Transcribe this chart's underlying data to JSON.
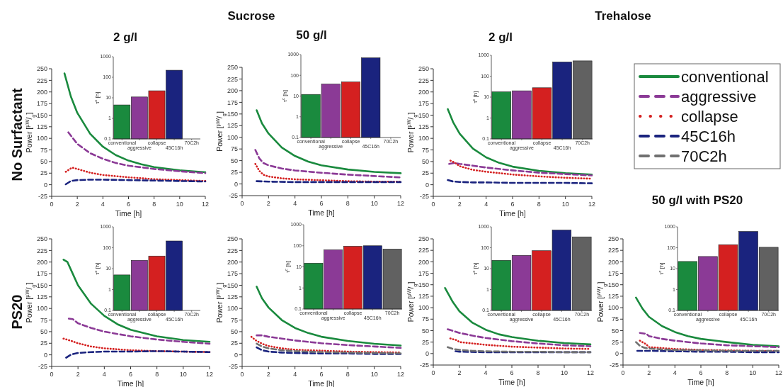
{
  "chart_data": [
    {
      "type": "line",
      "title": "2 g/l",
      "annotations": [
        "Sucrose",
        "No Surfactant"
      ],
      "xlabel": "Time [h]",
      "ylabel": "Power [$^{µW}$/$_{g}$]",
      "xlim": [
        0,
        12
      ],
      "xticks": [
        0,
        2,
        4,
        6,
        8,
        10,
        12
      ],
      "ylim": [
        -25,
        250
      ],
      "yticks": [
        -25,
        0,
        25,
        50,
        75,
        100,
        125,
        150,
        175,
        200,
        225,
        250
      ],
      "series": [
        {
          "color": "#1a8a3e",
          "line_style": "solid",
          "x": [
            1,
            1.5,
            2,
            3,
            4,
            5,
            6,
            7,
            8,
            10,
            12
          ],
          "values": [
            240,
            190,
            155,
            110,
            82,
            64,
            52,
            44,
            38,
            31,
            27
          ]
        },
        {
          "color": "#8b3a96",
          "line_style": "dashed",
          "x": [
            1.3,
            2,
            3,
            4,
            5,
            6,
            8,
            10,
            12
          ],
          "values": [
            113,
            88,
            68,
            56,
            47,
            41,
            34,
            29,
            25
          ]
        },
        {
          "color": "#d42020",
          "line_style": "dotted",
          "x": [
            1.1,
            1.6,
            2,
            3,
            4,
            6,
            8,
            10,
            12
          ],
          "values": [
            28,
            37,
            34,
            26,
            21,
            16,
            12,
            10,
            8
          ]
        },
        {
          "color": "#1a237e",
          "line_style": "dashed",
          "x": [
            1.1,
            1.5,
            2,
            3,
            4,
            6,
            8,
            10,
            12
          ],
          "values": [
            1,
            8,
            10,
            11,
            11,
            10,
            9,
            8,
            7
          ]
        }
      ]
    },
    {
      "type": "bar",
      "log": true,
      "ylabel": "τ$^{c}$ [h]",
      "ylim": [
        0.1,
        1000
      ],
      "yticks": [
        0.1,
        1,
        10,
        100,
        1000
      ],
      "categories": [
        "conventional",
        "aggressive",
        "collapse",
        "45C16h",
        "70C2h"
      ],
      "values": [
        4.5,
        11,
        22,
        220,
        null
      ],
      "colors": [
        "#1a8a3e",
        "#8b3a96",
        "#d42020",
        "#1a237e",
        null
      ]
    },
    {
      "type": "line",
      "title": "50 g/l",
      "xlabel": "Time [h]",
      "ylabel": "Power [$^{µW}$/$_{g}$]",
      "xlim": [
        0,
        12
      ],
      "xticks": [
        0,
        2,
        4,
        6,
        8,
        10,
        12
      ],
      "ylim": [
        -25,
        250
      ],
      "yticks": [
        -25,
        0,
        25,
        50,
        75,
        100,
        125,
        150,
        175,
        200,
        225,
        250
      ],
      "series": [
        {
          "color": "#1a8a3e",
          "line_style": "solid",
          "x": [
            1.1,
            1.5,
            2,
            3,
            4,
            5,
            6,
            8,
            10,
            12
          ],
          "values": [
            158,
            130,
            108,
            78,
            60,
            48,
            40,
            31,
            26,
            23
          ]
        },
        {
          "color": "#8b3a96",
          "line_style": "dashed",
          "x": [
            1,
            1.3,
            1.6,
            2,
            3,
            4,
            6,
            8,
            10,
            12
          ],
          "values": [
            73,
            55,
            45,
            40,
            33,
            29,
            24,
            20,
            17,
            14
          ]
        },
        {
          "color": "#d42020",
          "line_style": "dotted",
          "x": [
            1,
            1.3,
            1.6,
            2,
            3,
            4,
            6,
            8,
            10,
            12
          ],
          "values": [
            43,
            28,
            20,
            16,
            12,
            10,
            8,
            6,
            5,
            5
          ]
        },
        {
          "color": "#1a237e",
          "line_style": "dashed",
          "x": [
            1.1,
            2,
            4,
            6,
            8,
            10,
            12
          ],
          "values": [
            6,
            5,
            4,
            4,
            4,
            4,
            4
          ]
        }
      ]
    },
    {
      "type": "bar",
      "log": true,
      "ylabel": "τ$^{c}$ [h]",
      "ylim": [
        0.1,
        1000
      ],
      "yticks": [
        0.1,
        1,
        10,
        100,
        1000
      ],
      "categories": [
        "conventional",
        "aggressive",
        "collapse",
        "45C16h",
        "70C2h"
      ],
      "values": [
        12,
        38,
        48,
        700,
        null
      ],
      "colors": [
        "#1a8a3e",
        "#8b3a96",
        "#d42020",
        "#1a237e",
        null
      ]
    },
    {
      "type": "line",
      "title": "2 g/l",
      "annotations": [
        "Trehalose"
      ],
      "xlabel": "Time [h]",
      "ylabel": "Power [$^{µW}$/$_{g}$]",
      "xlim": [
        0,
        12
      ],
      "xticks": [
        0,
        2,
        4,
        6,
        8,
        10,
        12
      ],
      "ylim": [
        -25,
        250
      ],
      "yticks": [
        -25,
        0,
        25,
        50,
        75,
        100,
        125,
        150,
        175,
        200,
        225,
        250
      ],
      "series": [
        {
          "color": "#1a8a3e",
          "line_style": "solid",
          "x": [
            1.1,
            1.5,
            2,
            3,
            4,
            5,
            6,
            8,
            10,
            12
          ],
          "values": [
            163,
            135,
            110,
            78,
            59,
            47,
            39,
            30,
            25,
            22
          ]
        },
        {
          "color": "#8b3a96",
          "line_style": "dashed",
          "x": [
            1.2,
            1.6,
            2,
            3,
            4,
            6,
            8,
            10,
            12
          ],
          "values": [
            45,
            47,
            45,
            41,
            37,
            31,
            26,
            23,
            20
          ]
        },
        {
          "color": "#d42020",
          "line_style": "dotted",
          "x": [
            1.3,
            1.6,
            2,
            3,
            4,
            6,
            8,
            10,
            12
          ],
          "values": [
            52,
            48,
            40,
            32,
            28,
            22,
            18,
            15,
            13
          ]
        },
        {
          "color": "#1a237e",
          "line_style": "dashed",
          "x": [
            1.1,
            1.5,
            2,
            3,
            4,
            6,
            8,
            10,
            12
          ],
          "values": [
            10,
            7,
            6,
            5,
            5,
            4,
            4,
            4,
            3
          ]
        }
      ]
    },
    {
      "type": "bar",
      "log": true,
      "ylabel": "τ$^{c}$ [h]",
      "ylim": [
        0.1,
        1000
      ],
      "yticks": [
        0.1,
        1,
        10,
        100,
        1000
      ],
      "categories": [
        "conventional",
        "aggressive",
        "collapse",
        "45C16h",
        "70C2h"
      ],
      "values": [
        18,
        20,
        28,
        480,
        540
      ],
      "colors": [
        "#1a8a3e",
        "#8b3a96",
        "#d42020",
        "#1a237e",
        "#616161"
      ]
    },
    {
      "type": "line",
      "annotations": [
        "PS20"
      ],
      "xlabel": "Time [h]",
      "ylabel": "Power [$^{µW}$/$_{g}$]",
      "xlim": [
        0,
        12
      ],
      "xticks": [
        0,
        2,
        4,
        6,
        8,
        10,
        12
      ],
      "ylim": [
        -25,
        250
      ],
      "yticks": [
        -25,
        0,
        25,
        50,
        75,
        100,
        125,
        150,
        175,
        200,
        225,
        250
      ],
      "series": [
        {
          "color": "#1a8a3e",
          "line_style": "solid",
          "x": [
            0.9,
            1.2,
            1.6,
            2,
            3,
            4,
            5,
            6,
            8,
            10,
            12
          ],
          "values": [
            205,
            200,
            175,
            150,
            110,
            84,
            66,
            54,
            40,
            32,
            28
          ]
        },
        {
          "color": "#8b3a96",
          "line_style": "dashed",
          "x": [
            1.3,
            1.6,
            2,
            3,
            4,
            6,
            8,
            10,
            12
          ],
          "values": [
            78,
            77,
            68,
            58,
            50,
            40,
            33,
            28,
            24
          ]
        },
        {
          "color": "#d42020",
          "line_style": "dotted",
          "x": [
            0.9,
            1.5,
            2,
            3,
            4,
            6,
            8,
            10,
            12
          ],
          "values": [
            35,
            30,
            25,
            18,
            14,
            10,
            8,
            7,
            6
          ]
        },
        {
          "color": "#1a237e",
          "line_style": "dashed",
          "x": [
            1.1,
            1.5,
            2,
            3,
            4,
            6,
            8,
            10,
            12
          ],
          "values": [
            -6,
            1,
            4,
            6,
            7,
            7,
            8,
            7,
            6
          ]
        }
      ]
    },
    {
      "type": "bar",
      "log": true,
      "ylabel": "τ$^{c}$ [h]",
      "ylim": [
        0.1,
        1000
      ],
      "yticks": [
        0.1,
        1,
        10,
        100,
        1000
      ],
      "categories": [
        "conventional",
        "aggressive",
        "collapse",
        "45C16h",
        "70C2h"
      ],
      "values": [
        5,
        25,
        40,
        210,
        null
      ],
      "colors": [
        "#1a8a3e",
        "#8b3a96",
        "#d42020",
        "#1a237e",
        null
      ]
    },
    {
      "type": "line",
      "xlabel": "Time [h]",
      "ylabel": "Power [$^{µW}$/$_{g}$]",
      "xlim": [
        0,
        12
      ],
      "xticks": [
        0,
        2,
        4,
        6,
        8,
        10,
        12
      ],
      "ylim": [
        -25,
        250
      ],
      "yticks": [
        -25,
        0,
        25,
        50,
        75,
        100,
        125,
        150,
        175,
        200,
        225,
        250
      ],
      "series": [
        {
          "color": "#1a8a3e",
          "line_style": "solid",
          "x": [
            1.1,
            1.5,
            2,
            3,
            4,
            5,
            6,
            8,
            10,
            12
          ],
          "values": [
            147,
            122,
            102,
            75,
            58,
            47,
            39,
            30,
            24,
            20
          ]
        },
        {
          "color": "#8b3a96",
          "line_style": "dashed",
          "x": [
            1.1,
            1.5,
            2,
            3,
            4,
            6,
            8,
            10,
            12
          ],
          "values": [
            42,
            42,
            39,
            35,
            31,
            25,
            21,
            18,
            15
          ]
        },
        {
          "color": "#d42020",
          "line_style": "dotted",
          "x": [
            0.7,
            1,
            1.5,
            2,
            3,
            4,
            6,
            8,
            10,
            12
          ],
          "values": [
            39,
            32,
            24,
            19,
            14,
            11,
            9,
            7,
            6,
            5
          ]
        },
        {
          "color": "#1a237e",
          "line_style": "dashed",
          "x": [
            1.1,
            1.5,
            2,
            3,
            4,
            6,
            8,
            10,
            12
          ],
          "values": [
            16,
            10,
            7,
            5,
            4,
            3,
            3,
            2,
            2
          ]
        },
        {
          "color": "#707070",
          "line_style": "dashed",
          "x": [
            1.1,
            1.5,
            2,
            3,
            4,
            6,
            8,
            10,
            12
          ],
          "values": [
            24,
            18,
            14,
            10,
            8,
            6,
            5,
            4,
            3
          ]
        }
      ]
    },
    {
      "type": "bar",
      "log": true,
      "ylabel": "τ$^{c}$ [h]",
      "ylim": [
        0.1,
        1000
      ],
      "yticks": [
        0.1,
        1,
        10,
        100,
        1000
      ],
      "categories": [
        "conventional",
        "aggressive",
        "collapse",
        "45C16h",
        "70C2h"
      ],
      "values": [
        15,
        65,
        95,
        100,
        70
      ],
      "colors": [
        "#1a8a3e",
        "#8b3a96",
        "#d42020",
        "#1a237e",
        "#616161"
      ]
    },
    {
      "type": "line",
      "xlabel": "Time [h]",
      "ylabel": "Power [$^{µW}$/$_{g}$]",
      "xlim": [
        0,
        12
      ],
      "xticks": [
        0,
        2,
        4,
        6,
        8,
        10,
        12
      ],
      "ylim": [
        -25,
        250
      ],
      "yticks": [
        -25,
        0,
        25,
        50,
        75,
        100,
        125,
        150,
        175,
        200,
        225,
        250
      ],
      "series": [
        {
          "color": "#1a8a3e",
          "line_style": "solid",
          "x": [
            0.9,
            1.5,
            2,
            3,
            4,
            5,
            6,
            8,
            10,
            12
          ],
          "values": [
            143,
            112,
            92,
            67,
            52,
            42,
            36,
            28,
            23,
            20
          ]
        },
        {
          "color": "#8b3a96",
          "line_style": "dashed",
          "x": [
            1.1,
            2,
            3,
            4,
            6,
            8,
            10,
            12
          ],
          "values": [
            53,
            45,
            39,
            34,
            27,
            22,
            18,
            16
          ]
        },
        {
          "color": "#d42020",
          "line_style": "dotted",
          "x": [
            1.3,
            1.8,
            2,
            3,
            4,
            6,
            8,
            10,
            12
          ],
          "values": [
            33,
            29,
            25,
            22,
            19,
            15,
            13,
            11,
            10
          ]
        },
        {
          "color": "#1a237e",
          "line_style": "dashed",
          "x": [
            1.7,
            2,
            4,
            6,
            8,
            10,
            12
          ],
          "values": [
            5,
            4,
            3,
            3,
            3,
            3,
            3
          ]
        },
        {
          "color": "#707070",
          "line_style": "dashed",
          "x": [
            1.1,
            1.5,
            2,
            3,
            4,
            6,
            8,
            10,
            12
          ],
          "values": [
            14,
            10,
            8,
            6,
            5,
            4,
            4,
            3,
            3
          ]
        }
      ]
    },
    {
      "type": "bar",
      "log": true,
      "ylabel": "τ$^{c}$ [h]",
      "ylim": [
        0.1,
        1000
      ],
      "yticks": [
        0.1,
        1,
        10,
        100,
        1000
      ],
      "categories": [
        "conventional",
        "aggressive",
        "collapse",
        "45C16h",
        "70C2h"
      ],
      "values": [
        25,
        43,
        72,
        700,
        330
      ],
      "colors": [
        "#1a8a3e",
        "#8b3a96",
        "#d42020",
        "#1a237e",
        "#616161"
      ]
    },
    {
      "type": "line",
      "title": "50 g/l with PS20",
      "legend": "top",
      "xlabel": "Time [h]",
      "ylabel": "Power [$^{µW}$/$_{g}$]",
      "xlim": [
        0,
        12
      ],
      "xticks": [
        0,
        2,
        4,
        6,
        8,
        10,
        12
      ],
      "ylim": [
        -25,
        250
      ],
      "yticks": [
        -25,
        0,
        25,
        50,
        75,
        100,
        125,
        150,
        175,
        200,
        225,
        250
      ],
      "series": [
        {
          "name": "conventional",
          "color": "#1a8a3e",
          "line_style": "solid",
          "x": [
            1,
            1.5,
            2,
            3,
            4,
            5,
            6,
            8,
            10,
            12
          ],
          "values": [
            122,
            98,
            80,
            60,
            47,
            38,
            32,
            25,
            19,
            16
          ]
        },
        {
          "name": "aggressive",
          "color": "#8b3a96",
          "line_style": "dashed",
          "x": [
            1.3,
            1.8,
            2,
            3,
            4,
            6,
            8,
            10,
            12
          ],
          "values": [
            45,
            43,
            38,
            32,
            28,
            22,
            18,
            16,
            14
          ]
        },
        {
          "name": "collapse",
          "color": "#d42020",
          "line_style": "dotted",
          "x": [
            1.3,
            1.8,
            2,
            3,
            4,
            6,
            8,
            10,
            12
          ],
          "values": [
            28,
            20,
            14,
            12,
            10,
            8,
            7,
            6,
            6
          ]
        },
        {
          "name": "45C16h",
          "color": "#1a237e",
          "line_style": "dashed",
          "x": [
            1.1,
            2,
            4,
            6,
            8,
            10,
            12
          ],
          "values": [
            6,
            6,
            5,
            4,
            4,
            3,
            3
          ]
        },
        {
          "name": "70C2h",
          "color": "#707070",
          "line_style": "dashed",
          "x": [
            1,
            1.3,
            1.6,
            2,
            3,
            4,
            6,
            8,
            10,
            12
          ],
          "values": [
            25,
            17,
            13,
            11,
            9,
            8,
            7,
            6,
            6,
            6
          ]
        }
      ]
    },
    {
      "type": "bar",
      "log": true,
      "ylabel": "τ$^{c}$ [h]",
      "ylim": [
        0.1,
        1000
      ],
      "yticks": [
        0.1,
        1,
        10,
        100,
        1000
      ],
      "categories": [
        "conventional",
        "aggressive",
        "collapse",
        "45C16h",
        "70C2h"
      ],
      "values": [
        22,
        38,
        140,
        600,
        105
      ],
      "colors": [
        "#1a8a3e",
        "#8b3a96",
        "#d42020",
        "#1a237e",
        "#616161"
      ]
    }
  ]
}
